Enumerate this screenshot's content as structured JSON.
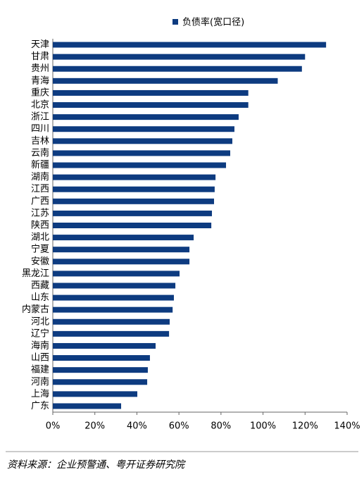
{
  "chart_data": {
    "type": "barh",
    "categories": [
      "天津",
      "甘肃",
      "贵州",
      "青海",
      "重庆",
      "北京",
      "浙江",
      "四川",
      "吉林",
      "云南",
      "新疆",
      "湖南",
      "江西",
      "广西",
      "江苏",
      "陕西",
      "湖北",
      "宁夏",
      "安徽",
      "黑龙江",
      "西藏",
      "山东",
      "内蒙古",
      "河北",
      "辽宁",
      "海南",
      "山西",
      "福建",
      "河南",
      "上海",
      "广东"
    ],
    "series": [
      {
        "name": "负债率(宽口径)",
        "color": "#0d3b80",
        "values": [
          130,
          120,
          118.5,
          107,
          93,
          93,
          88.4,
          86.4,
          85.4,
          84.4,
          82.4,
          77.4,
          77,
          76.7,
          75.7,
          75.4,
          67,
          65,
          65,
          60.3,
          58.3,
          57.6,
          57,
          55.6,
          55.3,
          48.9,
          46.2,
          45.2,
          44.9,
          40.2,
          32.5
        ]
      }
    ],
    "xlim": [
      0,
      140
    ],
    "xticks": [
      {
        "value": 0,
        "label": "0%"
      },
      {
        "value": 20,
        "label": "20%"
      },
      {
        "value": 40,
        "label": "40%"
      },
      {
        "value": 60,
        "label": "60%"
      },
      {
        "value": 80,
        "label": "80%"
      },
      {
        "value": 100,
        "label": "100%"
      },
      {
        "value": 120,
        "label": "120%"
      },
      {
        "value": 140,
        "label": "140%"
      }
    ],
    "legend": "top"
  },
  "source": "资料来源：企业预警通、粤开证券研究院"
}
